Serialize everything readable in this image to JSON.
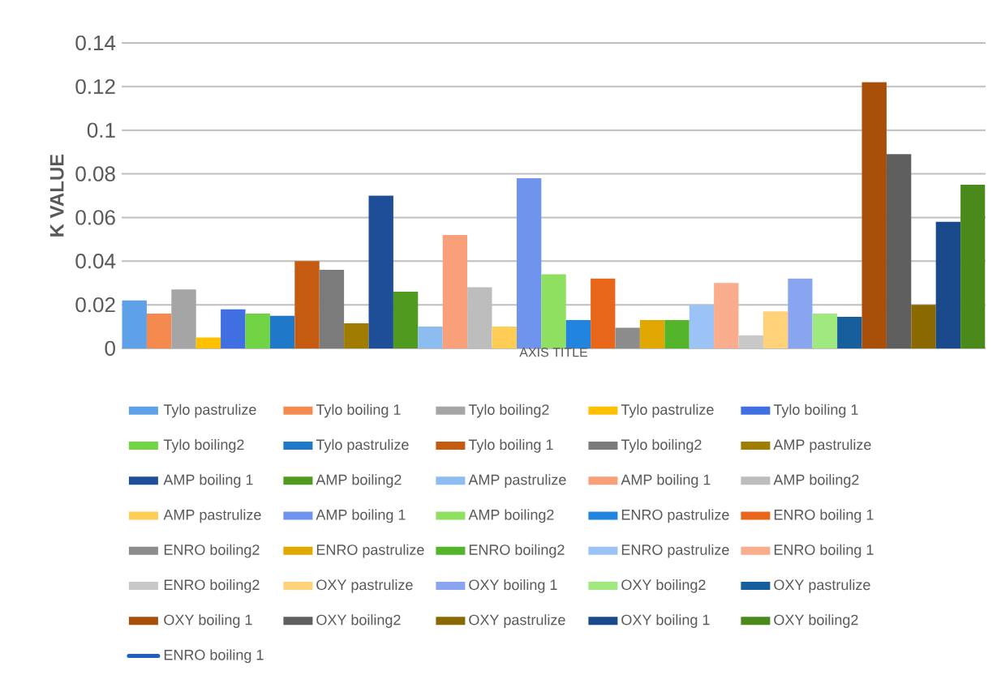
{
  "chart_data": {
    "type": "bar",
    "xlabel": "AXIS TITLE",
    "ylabel": "K VALUE",
    "categories": [
      null
    ],
    "ylim": [
      0,
      0.14
    ],
    "yticks": [
      0,
      0.02,
      0.04,
      0.06,
      0.08,
      0.1,
      0.12,
      0.14
    ],
    "grid": "y",
    "legend": "bottom",
    "tick_labels": "y",
    "series": [
      {
        "name": "Tylo pastrulize",
        "color": "#5ea1e8",
        "values": [
          0.022
        ]
      },
      {
        "name": "Tylo boiling 1",
        "color": "#f58a4e",
        "values": [
          0.016
        ]
      },
      {
        "name": "Tylo boiling2",
        "color": "#a5a5a5",
        "values": [
          0.027
        ]
      },
      {
        "name": "Tylo pastrulize",
        "color": "#ffc000",
        "values": [
          0.005
        ]
      },
      {
        "name": "Tylo boiling 1",
        "color": "#3f6fe0",
        "values": [
          0.018
        ]
      },
      {
        "name": "Tylo boiling2",
        "color": "#70d444",
        "values": [
          0.016
        ]
      },
      {
        "name": "Tylo pastrulize",
        "color": "#1f78c8",
        "values": [
          0.015
        ]
      },
      {
        "name": "Tylo boiling 1",
        "color": "#c55a11",
        "values": [
          0.04
        ]
      },
      {
        "name": "Tylo boiling2",
        "color": "#7b7b7b",
        "values": [
          0.036
        ]
      },
      {
        "name": "AMP pastrulize",
        "color": "#a07c00",
        "values": [
          0.0115
        ]
      },
      {
        "name": "AMP boiling 1",
        "color": "#1f4e99",
        "values": [
          0.07
        ]
      },
      {
        "name": "AMP boiling2",
        "color": "#4f9a1f",
        "values": [
          0.026
        ]
      },
      {
        "name": "AMP pastrulize",
        "color": "#8dbcf0",
        "values": [
          0.01
        ]
      },
      {
        "name": "AMP boiling 1",
        "color": "#f8a07a",
        "values": [
          0.052
        ]
      },
      {
        "name": "AMP boiling2",
        "color": "#bdbdbd",
        "values": [
          0.028
        ]
      },
      {
        "name": "AMP pastrulize",
        "color": "#ffcc55",
        "values": [
          0.01
        ]
      },
      {
        "name": "AMP boiling 1",
        "color": "#6f94ee",
        "values": [
          0.078
        ]
      },
      {
        "name": "AMP boiling2",
        "color": "#8fe060",
        "values": [
          0.034
        ]
      },
      {
        "name": "ENRO pastrulize",
        "color": "#2185e0",
        "values": [
          0.013
        ]
      },
      {
        "name": "ENRO boiling 1",
        "color": "#e8661a",
        "values": [
          0.032
        ]
      },
      {
        "name": "ENRO boiling2",
        "color": "#8c8c8c",
        "values": [
          0.0095
        ]
      },
      {
        "name": "ENRO pastrulize",
        "color": "#e0a800",
        "values": [
          0.013
        ]
      },
      {
        "name": "ENRO boiling2",
        "color": "#55b52a",
        "values": [
          0.013
        ]
      },
      {
        "name": "ENRO pastrulize",
        "color": "#9cc3f5",
        "values": [
          0.02
        ]
      },
      {
        "name": "ENRO boiling 1",
        "color": "#f9ad8c",
        "values": [
          0.03
        ]
      },
      {
        "name": "ENRO boiling2",
        "color": "#c8c8c8",
        "values": [
          0.006
        ]
      },
      {
        "name": "OXY pastrulize",
        "color": "#ffd27a",
        "values": [
          0.017
        ]
      },
      {
        "name": "OXY boiling 1",
        "color": "#8aa5f0",
        "values": [
          0.032
        ]
      },
      {
        "name": "OXY boiling2",
        "color": "#a0e880",
        "values": [
          0.016
        ]
      },
      {
        "name": "OXY pastrulize",
        "color": "#165f9c",
        "values": [
          0.0145
        ]
      },
      {
        "name": "OXY boiling 1",
        "color": "#a84f0a",
        "values": [
          0.122
        ]
      },
      {
        "name": "OXY boiling2",
        "color": "#5f5f5f",
        "values": [
          0.089
        ]
      },
      {
        "name": "OXY pastrulize",
        "color": "#8a6a00",
        "values": [
          0.02
        ]
      },
      {
        "name": "OXY boiling 1",
        "color": "#1a4a8c",
        "values": [
          0.058
        ]
      },
      {
        "name": "OXY boiling2",
        "color": "#4a8a1a",
        "values": [
          0.075
        ]
      },
      {
        "name": "ENRO boiling 1",
        "color": "#1f5fbf",
        "type": "line",
        "values": [
          null
        ]
      }
    ]
  }
}
